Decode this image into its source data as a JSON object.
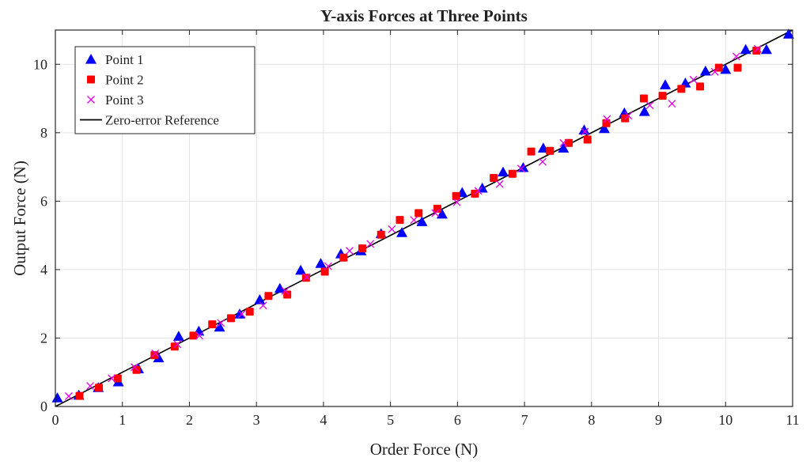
{
  "chart_data": {
    "type": "scatter",
    "title": "Y-axis Forces at Three Points",
    "xlabel": "Order Force (N)",
    "ylabel": "Output Force (N)",
    "xlim": [
      0,
      11
    ],
    "ylim": [
      0,
      11
    ],
    "xticks": [
      0,
      1,
      2,
      3,
      4,
      5,
      6,
      7,
      8,
      9,
      10,
      11
    ],
    "yticks": [
      0,
      2,
      4,
      6,
      8,
      10
    ],
    "grid": true,
    "legend_position": "top-left",
    "series": [
      {
        "name": "Point 1",
        "marker": "triangle",
        "color": "#0000ff",
        "points": [
          [
            0.03,
            0.25
          ],
          [
            0.35,
            0.33
          ],
          [
            0.64,
            0.55
          ],
          [
            0.94,
            0.72
          ],
          [
            1.24,
            1.1
          ],
          [
            1.54,
            1.42
          ],
          [
            1.84,
            2.05
          ],
          [
            2.14,
            2.2
          ],
          [
            2.45,
            2.32
          ],
          [
            2.75,
            2.7
          ],
          [
            3.05,
            3.12
          ],
          [
            3.35,
            3.45
          ],
          [
            3.66,
            3.98
          ],
          [
            3.96,
            4.18
          ],
          [
            4.26,
            4.46
          ],
          [
            4.56,
            4.55
          ],
          [
            4.86,
            5.05
          ],
          [
            5.17,
            5.08
          ],
          [
            5.47,
            5.4
          ],
          [
            5.77,
            5.62
          ],
          [
            6.07,
            6.25
          ],
          [
            6.37,
            6.38
          ],
          [
            6.68,
            6.85
          ],
          [
            6.98,
            6.98
          ],
          [
            7.28,
            7.55
          ],
          [
            7.58,
            7.55
          ],
          [
            7.89,
            8.08
          ],
          [
            8.19,
            8.12
          ],
          [
            8.49,
            8.58
          ],
          [
            8.79,
            8.62
          ],
          [
            9.1,
            9.4
          ],
          [
            9.4,
            9.45
          ],
          [
            9.7,
            9.8
          ],
          [
            10.0,
            9.85
          ],
          [
            10.3,
            10.43
          ],
          [
            10.61,
            10.43
          ],
          [
            10.94,
            10.88
          ]
        ]
      },
      {
        "name": "Point 2",
        "marker": "square",
        "color": "#ff0000",
        "points": [
          [
            0.36,
            0.31
          ],
          [
            0.65,
            0.55
          ],
          [
            0.93,
            0.82
          ],
          [
            1.21,
            1.07
          ],
          [
            1.48,
            1.5
          ],
          [
            1.78,
            1.75
          ],
          [
            2.06,
            2.07
          ],
          [
            2.34,
            2.4
          ],
          [
            2.62,
            2.58
          ],
          [
            2.9,
            2.77
          ],
          [
            3.18,
            3.23
          ],
          [
            3.46,
            3.27
          ],
          [
            3.74,
            3.76
          ],
          [
            4.02,
            3.94
          ],
          [
            4.3,
            4.35
          ],
          [
            4.58,
            4.62
          ],
          [
            4.86,
            5.02
          ],
          [
            5.14,
            5.45
          ],
          [
            5.42,
            5.65
          ],
          [
            5.7,
            5.78
          ],
          [
            5.98,
            6.15
          ],
          [
            6.26,
            6.22
          ],
          [
            6.54,
            6.68
          ],
          [
            6.82,
            6.8
          ],
          [
            7.1,
            7.45
          ],
          [
            7.38,
            7.47
          ],
          [
            7.66,
            7.7
          ],
          [
            7.94,
            7.8
          ],
          [
            8.22,
            8.28
          ],
          [
            8.5,
            8.42
          ],
          [
            8.78,
            9.0
          ],
          [
            9.06,
            9.08
          ],
          [
            9.34,
            9.28
          ],
          [
            9.62,
            9.35
          ],
          [
            9.9,
            9.9
          ],
          [
            10.18,
            9.9
          ],
          [
            10.46,
            10.4
          ]
        ]
      },
      {
        "name": "Point 3",
        "marker": "x",
        "color": "#e000e0",
        "points": [
          [
            0.2,
            0.3
          ],
          [
            0.52,
            0.6
          ],
          [
            0.84,
            0.82
          ],
          [
            1.18,
            1.15
          ],
          [
            1.49,
            1.55
          ],
          [
            1.82,
            1.82
          ],
          [
            2.15,
            2.07
          ],
          [
            2.47,
            2.44
          ],
          [
            2.78,
            2.7
          ],
          [
            3.1,
            2.95
          ],
          [
            3.43,
            3.38
          ],
          [
            3.75,
            3.78
          ],
          [
            4.07,
            4.1
          ],
          [
            4.39,
            4.55
          ],
          [
            4.7,
            4.75
          ],
          [
            5.02,
            5.18
          ],
          [
            5.35,
            5.45
          ],
          [
            5.67,
            5.65
          ],
          [
            5.99,
            5.97
          ],
          [
            6.31,
            6.3
          ],
          [
            6.63,
            6.5
          ],
          [
            6.95,
            6.95
          ],
          [
            7.27,
            7.15
          ],
          [
            7.58,
            7.7
          ],
          [
            7.9,
            8.03
          ],
          [
            8.23,
            8.4
          ],
          [
            8.55,
            8.5
          ],
          [
            8.87,
            8.8
          ],
          [
            9.2,
            8.85
          ],
          [
            9.52,
            9.55
          ],
          [
            9.84,
            9.78
          ],
          [
            10.16,
            10.23
          ],
          [
            10.48,
            10.45
          ]
        ]
      },
      {
        "name": "Zero-error Reference",
        "marker": "line",
        "color": "#000000",
        "line": [
          [
            0,
            0
          ],
          [
            11,
            11
          ]
        ]
      }
    ]
  }
}
